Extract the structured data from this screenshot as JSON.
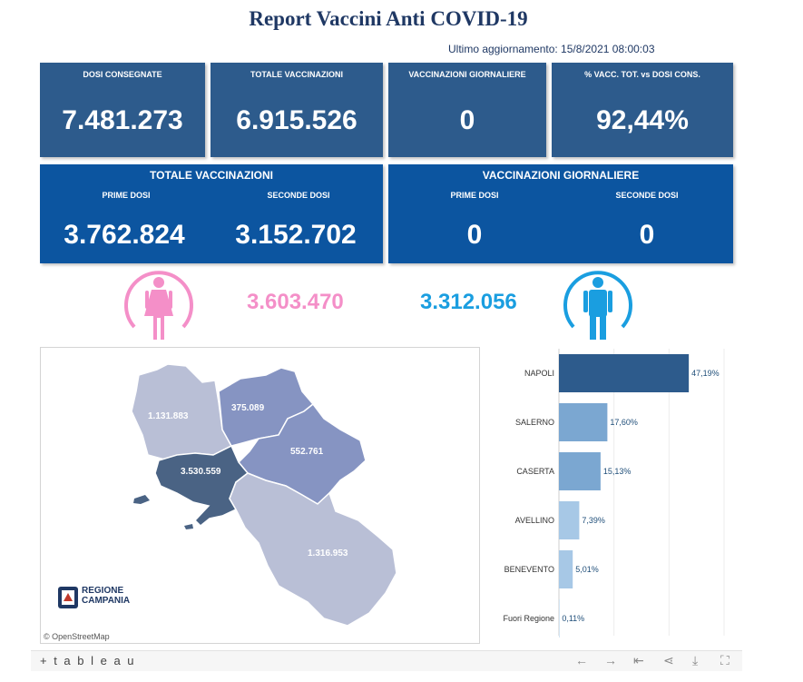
{
  "title": "Report Vaccini Anti COVID-19",
  "updated": "Ultimo aggiornamento: 15/8/2021  08:00:03",
  "kpis": [
    {
      "label": "DOSI  CONSEGNATE",
      "value": "7.481.273"
    },
    {
      "label": "TOTALE VACCINAZIONI",
      "value": "6.915.526"
    },
    {
      "label": "VACCINAZIONI GIORNALIERE",
      "value": "0"
    },
    {
      "label": "% VACC. TOT. vs DOSI CONS.",
      "value": "92,44%"
    }
  ],
  "totale_panel": {
    "title": "TOTALE VACCINAZIONI",
    "prime_label": "PRIME DOSI",
    "prime_value": "3.762.824",
    "seconde_label": "SECONDE DOSI",
    "seconde_value": "3.152.702"
  },
  "giornaliere_panel": {
    "title": "VACCINAZIONI GIORNALIERE",
    "prime_label": "PRIME DOSI",
    "prime_value": "0",
    "seconde_label": "SECONDE DOSI",
    "seconde_value": "0"
  },
  "gender": {
    "female_value": "3.603.470",
    "female_color": "#f48fc8",
    "female_icon": "female-icon",
    "male_value": "3.312.056",
    "male_color": "#1a9ee0",
    "male_icon": "male-icon"
  },
  "map": {
    "labels": {
      "caserta": "1.131.883",
      "benevento": "375.089",
      "avellino": "552.761",
      "napoli": "3.530.559",
      "salerno": "1.316.953"
    },
    "attribution": "© OpenStreetMap",
    "logo_line1": "REGIONE",
    "logo_line2": "CAMPANIA"
  },
  "chart_data": {
    "type": "bar",
    "orientation": "horizontal",
    "categories": [
      "NAPOLI",
      "SALERNO",
      "CASERTA",
      "AVELLINO",
      "BENEVENTO",
      "Fuori Regione"
    ],
    "values": [
      47.19,
      17.6,
      15.13,
      7.39,
      5.01,
      0.11
    ],
    "value_labels": [
      "47,19%",
      "17,60%",
      "15,13%",
      "7,39%",
      "5,01%",
      "0,11%"
    ],
    "colors": [
      "#2d5b8c",
      "#7ba7d1",
      "#7ba7d1",
      "#a7c8e6",
      "#a7c8e6",
      "#a7c8e6"
    ],
    "xlim": [
      0,
      60
    ],
    "grid": true
  },
  "toolbar": {
    "brand": "+ t a b l e a u",
    "back_icon": "back-arrow-icon",
    "forward_icon": "forward-arrow-icon",
    "revert_icon": "revert-icon",
    "share_icon": "share-icon",
    "download_icon": "download-icon",
    "fullscreen_icon": "fullscreen-icon"
  }
}
